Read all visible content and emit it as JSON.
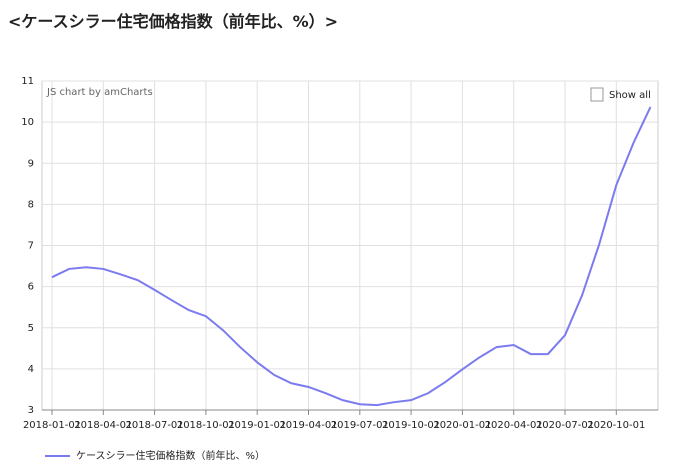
{
  "chart_data": {
    "type": "line",
    "title": "<ケースシラー住宅価格指数（前年比、%）>",
    "credit": "JS chart by amCharts",
    "button": "Show all",
    "categories": [
      "2018-01-01",
      null,
      null,
      "2018-04-01",
      null,
      null,
      "2018-07-01",
      null,
      null,
      "2018-10-01",
      null,
      null,
      "2019-01-01",
      null,
      null,
      "2019-04-01",
      null,
      null,
      "2019-07-01",
      null,
      null,
      "2019-10-01",
      null,
      null,
      "2020-01-01",
      null,
      null,
      "2020-04-01",
      null,
      null,
      "2020-07-01",
      null,
      null,
      "2020-10-01",
      null,
      null
    ],
    "series": [
      {
        "name": "ケースシラー住宅価格指数（前年比、%）",
        "color": "#7b7bf0",
        "values": [
          6.23,
          6.43,
          6.47,
          6.43,
          6.3,
          6.16,
          5.92,
          5.67,
          5.43,
          5.28,
          4.94,
          4.53,
          4.16,
          3.85,
          3.65,
          3.56,
          3.41,
          3.24,
          3.14,
          3.12,
          3.19,
          3.24,
          3.41,
          3.68,
          3.99,
          4.28,
          4.53,
          4.58,
          4.36,
          4.36,
          4.82,
          5.79,
          7.03,
          8.47,
          9.49,
          10.37
        ]
      }
    ],
    "ylim": [
      3,
      11
    ],
    "yticks": [
      3,
      4,
      5,
      6,
      7,
      8,
      9,
      10,
      11
    ],
    "grid": true
  }
}
